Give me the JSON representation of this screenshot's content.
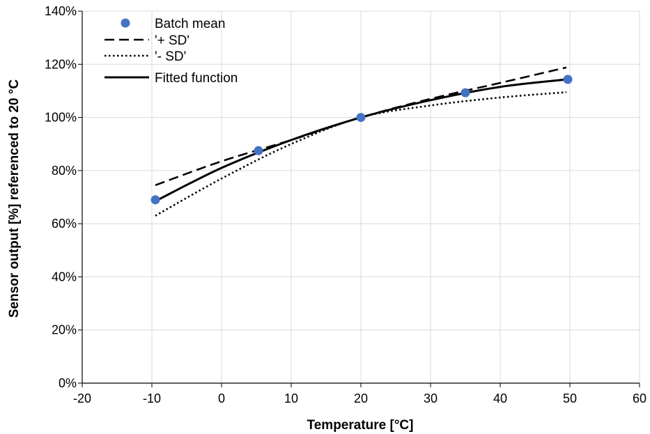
{
  "chart_data": {
    "type": "line",
    "xlabel": "Temperature [°C]",
    "ylabel": "Sensor output [%] referenced to 20 °C",
    "xlim": [
      -20,
      60
    ],
    "ylim": [
      0,
      140
    ],
    "x_ticks": [
      "-20",
      "-10",
      "0",
      "10",
      "20",
      "30",
      "40",
      "50",
      "60"
    ],
    "y_ticks": [
      "0%",
      "20%",
      "40%",
      "60%",
      "80%",
      "100%",
      "120%",
      "140%"
    ],
    "grid": true,
    "legend_position": "top-left",
    "series": [
      {
        "name": "Batch mean",
        "kind": "scatter",
        "color": "#4472C4",
        "points": [
          [
            -9.5,
            69
          ],
          [
            5.3,
            87.5
          ],
          [
            20,
            100
          ],
          [
            35,
            109.3
          ],
          [
            49.7,
            114.3
          ]
        ]
      },
      {
        "name": "'+ SD'",
        "kind": "line",
        "dash": "dashed",
        "color": "#000000",
        "points": [
          [
            -9.5,
            74.5
          ],
          [
            0,
            83.5
          ],
          [
            10,
            91.5
          ],
          [
            20,
            100
          ],
          [
            30,
            107
          ],
          [
            40,
            113
          ],
          [
            49.5,
            118.8
          ]
        ]
      },
      {
        "name": "'- SD'",
        "kind": "line",
        "dash": "dotted",
        "color": "#000000",
        "points": [
          [
            -9.5,
            63
          ],
          [
            0,
            77
          ],
          [
            10,
            90
          ],
          [
            20,
            100
          ],
          [
            30,
            104.5
          ],
          [
            40,
            107.5
          ],
          [
            49.5,
            109.5
          ]
        ]
      },
      {
        "name": "Fitted function",
        "kind": "line",
        "dash": "solid",
        "color": "#000000",
        "points": [
          [
            -9.5,
            68.5
          ],
          [
            0,
            81
          ],
          [
            10,
            91.5
          ],
          [
            20,
            100
          ],
          [
            30,
            106.5
          ],
          [
            40,
            111.5
          ],
          [
            49.5,
            114.3
          ]
        ]
      }
    ]
  }
}
